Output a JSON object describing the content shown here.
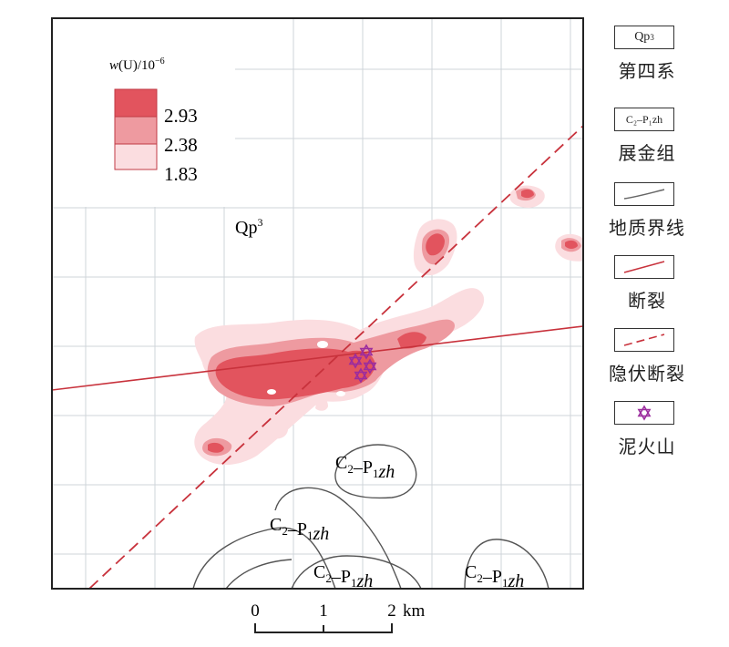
{
  "colors": {
    "anomaly_high": "#e2545e",
    "anomaly_mid": "#ee9aa0",
    "anomaly_low": "#fbdde0",
    "fault": "#c8323c",
    "boundary": "#555555",
    "mud_volcano": "#9b2c9e",
    "grid": "#cfd4da"
  },
  "concentration_legend": {
    "title_var": "w",
    "title_rest": "(U)/10",
    "title_exp": "−6",
    "levels": [
      "2.93",
      "2.38",
      "1.83"
    ]
  },
  "map_labels": {
    "qp3": {
      "text": "Qp",
      "sup": "3"
    },
    "formation": {
      "c": "C",
      "c_sub": "2",
      "dash": "–P",
      "p_sub": "1",
      "zh": "zh"
    }
  },
  "legend": [
    {
      "type": "box-text",
      "icon": "qp3-box",
      "box_text": "Qp",
      "box_sup": "3",
      "label": "第四系"
    },
    {
      "type": "box-text",
      "icon": "formation-box",
      "box_text": "C₂–P₁zh",
      "label": "展金组"
    },
    {
      "type": "line",
      "icon": "geologic-boundary-line",
      "label": "地质界线"
    },
    {
      "type": "line",
      "icon": "fault-line",
      "label": "断裂"
    },
    {
      "type": "line",
      "icon": "concealed-fault-line",
      "label": "隐伏断裂"
    },
    {
      "type": "symbol",
      "icon": "mud-volcano-icon",
      "label": "泥火山"
    }
  ],
  "scale_bar": {
    "ticks": [
      "0",
      "1",
      "2"
    ],
    "unit": "km"
  }
}
